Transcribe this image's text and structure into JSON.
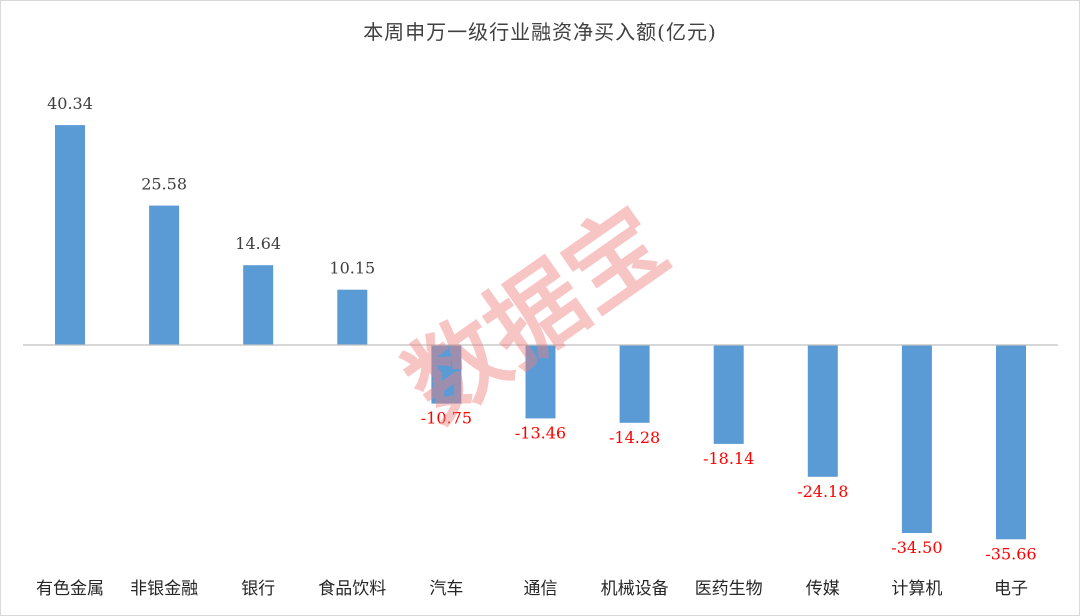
{
  "chart_data": {
    "type": "bar",
    "title": "本周申万一级行业融资净买入额(亿元)",
    "categories": [
      "有色金属",
      "非银金融",
      "银行",
      "食品饮料",
      "汽车",
      "通信",
      "机械设备",
      "医药生物",
      "传媒",
      "计算机",
      "电子"
    ],
    "series": [
      {
        "values": [
          40.34,
          25.58,
          14.64,
          10.15,
          -10.75,
          -13.46,
          -14.28,
          -18.14,
          -24.18,
          -34.5,
          -35.66
        ],
        "value_labels": [
          "40.34",
          "25.58",
          "14.64",
          "10.15",
          "-10.75",
          "-13.46",
          "-14.28",
          "-18.14",
          "-24.18",
          "-34.50",
          "-35.66"
        ]
      }
    ],
    "xlabel": "",
    "ylabel": "",
    "ylim": [
      -40,
      45
    ],
    "grid": false,
    "legend": "none",
    "bar_color": "#5b9bd5",
    "positive_label_color": "#404040",
    "negative_label_color": "#ff0000",
    "axis_color": "#bfbfbf"
  },
  "watermark": {
    "text": "数据宝",
    "color": "#f08080"
  }
}
